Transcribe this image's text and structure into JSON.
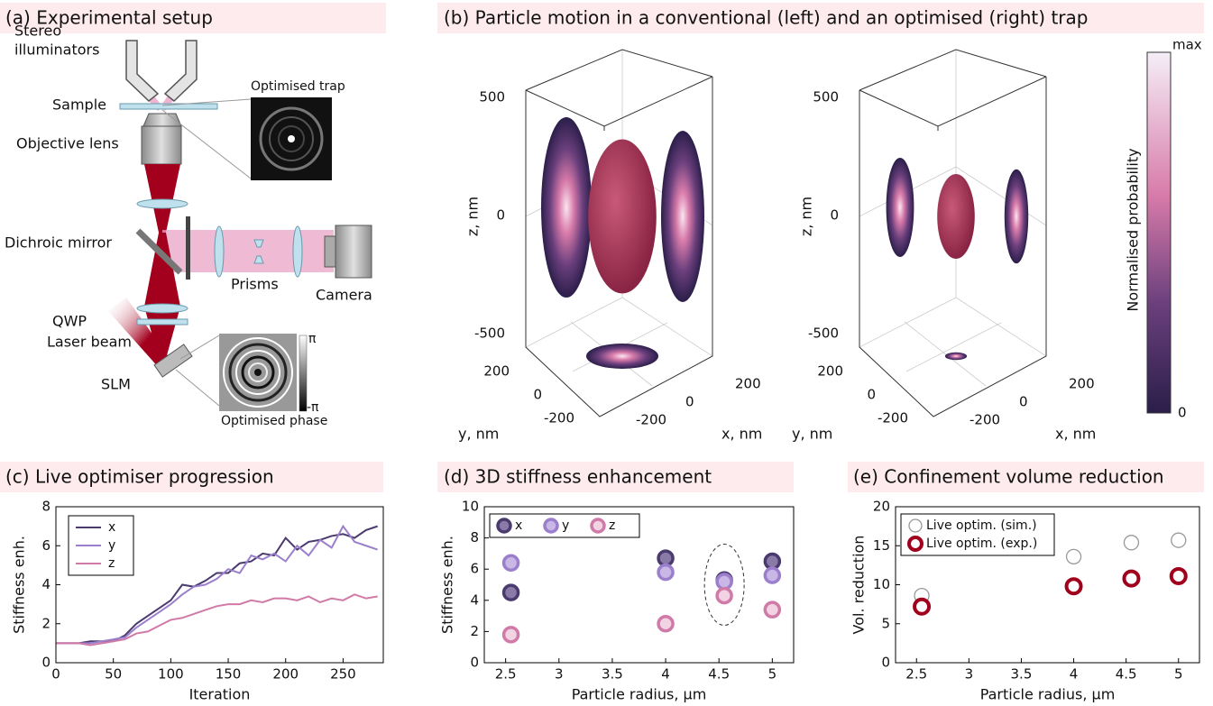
{
  "setup": {
    "title": "(a) Experimental setup",
    "labels": {
      "stereo": "Stereo",
      "illuminators": "illuminators",
      "sample": "Sample",
      "objective": "Objective lens",
      "dichroic": "Dichroic mirror",
      "prisms": "Prisms",
      "camera": "Camera",
      "qwp": "QWP",
      "laser": "Laser beam",
      "slm": "SLM",
      "trap": "Optimised trap",
      "phase": "Optimised phase",
      "pi": "π",
      "minus_pi": "-π"
    }
  },
  "motion": {
    "title": "(b) Particle motion in a conventional (left) and an optimised (right) trap",
    "zticks": [
      500,
      0,
      -500
    ],
    "yticks": [
      200,
      0,
      -200
    ],
    "xticks": [
      -200,
      0,
      200
    ],
    "zlabel": "z, nm",
    "ylabel": "y, nm",
    "xlabel": "x, nm",
    "colorbar": {
      "label": "Normalised probability",
      "max": "max",
      "min": "0"
    }
  },
  "chart_data": [
    {
      "type": "line",
      "title": "(c) Live optimiser progression",
      "xlabel": "Iteration",
      "ylabel": "Stiffness enh.",
      "x": [
        0,
        10,
        20,
        30,
        40,
        50,
        60,
        70,
        80,
        90,
        100,
        110,
        120,
        130,
        140,
        150,
        160,
        170,
        180,
        190,
        200,
        210,
        220,
        230,
        240,
        250,
        260,
        270,
        280
      ],
      "series": [
        {
          "name": "x",
          "color": "#4a3a6e",
          "values": [
            1,
            1,
            1,
            1.1,
            1.1,
            1.1,
            1.4,
            2.0,
            2.4,
            2.8,
            3.2,
            4.0,
            3.9,
            4.2,
            4.6,
            4.6,
            5.1,
            5.2,
            5.6,
            5.5,
            6.4,
            5.8,
            6.2,
            6.3,
            6.5,
            6.6,
            6.4,
            6.8,
            7.0
          ]
        },
        {
          "name": "y",
          "color": "#9b7fcc",
          "values": [
            1,
            1,
            1,
            1,
            1.1,
            1.2,
            1.3,
            1.8,
            2.2,
            2.6,
            3.0,
            3.5,
            3.9,
            4.0,
            4.3,
            4.8,
            4.6,
            5.5,
            5.3,
            5.6,
            5.2,
            6.0,
            5.5,
            6.3,
            5.9,
            7.0,
            6.2,
            6.0,
            5.8
          ]
        },
        {
          "name": "z",
          "color": "#d07aa8",
          "values": [
            1,
            1,
            1,
            0.9,
            1.0,
            1.1,
            1.2,
            1.5,
            1.6,
            1.9,
            2.2,
            2.3,
            2.5,
            2.7,
            2.9,
            3.0,
            3.0,
            3.2,
            3.1,
            3.3,
            3.3,
            3.2,
            3.4,
            3.1,
            3.3,
            3.2,
            3.5,
            3.3,
            3.4
          ]
        }
      ],
      "xlim": [
        0,
        285
      ],
      "xticks": [
        0,
        50,
        100,
        150,
        200,
        250
      ],
      "ylim": [
        0,
        8
      ],
      "yticks": [
        0,
        2,
        4,
        6,
        8
      ],
      "legend": "upper left",
      "legend_columns": 1
    },
    {
      "type": "scatter",
      "title": "(d) 3D stiffness enhancement",
      "xlabel": "Particle radius, μm",
      "ylabel": "Stiffness enh.",
      "x": [
        2.55,
        4,
        4.55,
        5
      ],
      "series": [
        {
          "name": "x",
          "color": "#4a3a6e",
          "fill": "#8a7aa8",
          "edge_width": 3.5,
          "values": [
            4.5,
            6.7,
            5.3,
            6.5
          ]
        },
        {
          "name": "y",
          "color": "#9b7fcc",
          "fill": "#c9b8e6",
          "edge_width": 3.5,
          "values": [
            6.4,
            5.8,
            5.2,
            5.6
          ]
        },
        {
          "name": "z",
          "color": "#d07aa8",
          "fill": "#f1d3e3",
          "edge_width": 3.5,
          "values": [
            1.8,
            2.5,
            4.3,
            3.4
          ]
        }
      ],
      "xlim": [
        2.3,
        5.2
      ],
      "xticks": [
        2.5,
        3,
        3.5,
        4,
        4.5,
        5
      ],
      "ylim": [
        0,
        10
      ],
      "yticks": [
        0,
        2,
        4,
        6,
        8,
        10
      ],
      "legend": "upper left",
      "legend_columns": 3
    },
    {
      "type": "scatter",
      "title": "(e) Confinement volume reduction",
      "xlabel": "Particle radius, μm",
      "ylabel": "Vol. reduction",
      "x": [
        2.55,
        4,
        4.55,
        5
      ],
      "series": [
        {
          "name": "Live optim. (sim.)",
          "color": "#999999",
          "fill": "#ffffff",
          "edge_width": 1.3,
          "values": [
            8.6,
            13.6,
            15.4,
            15.7
          ]
        },
        {
          "name": "Live optim. (exp.)",
          "color": "#a0001c",
          "fill": "#ffffff",
          "edge_width": 4,
          "values": [
            7.2,
            9.8,
            10.8,
            11.1
          ]
        }
      ],
      "xlim": [
        2.3,
        5.2
      ],
      "xticks": [
        2.5,
        3,
        3.5,
        4,
        4.5,
        5
      ],
      "ylim": [
        0,
        20
      ],
      "yticks": [
        0,
        5,
        10,
        15,
        20
      ],
      "legend": "upper left",
      "legend_columns": 1
    }
  ]
}
